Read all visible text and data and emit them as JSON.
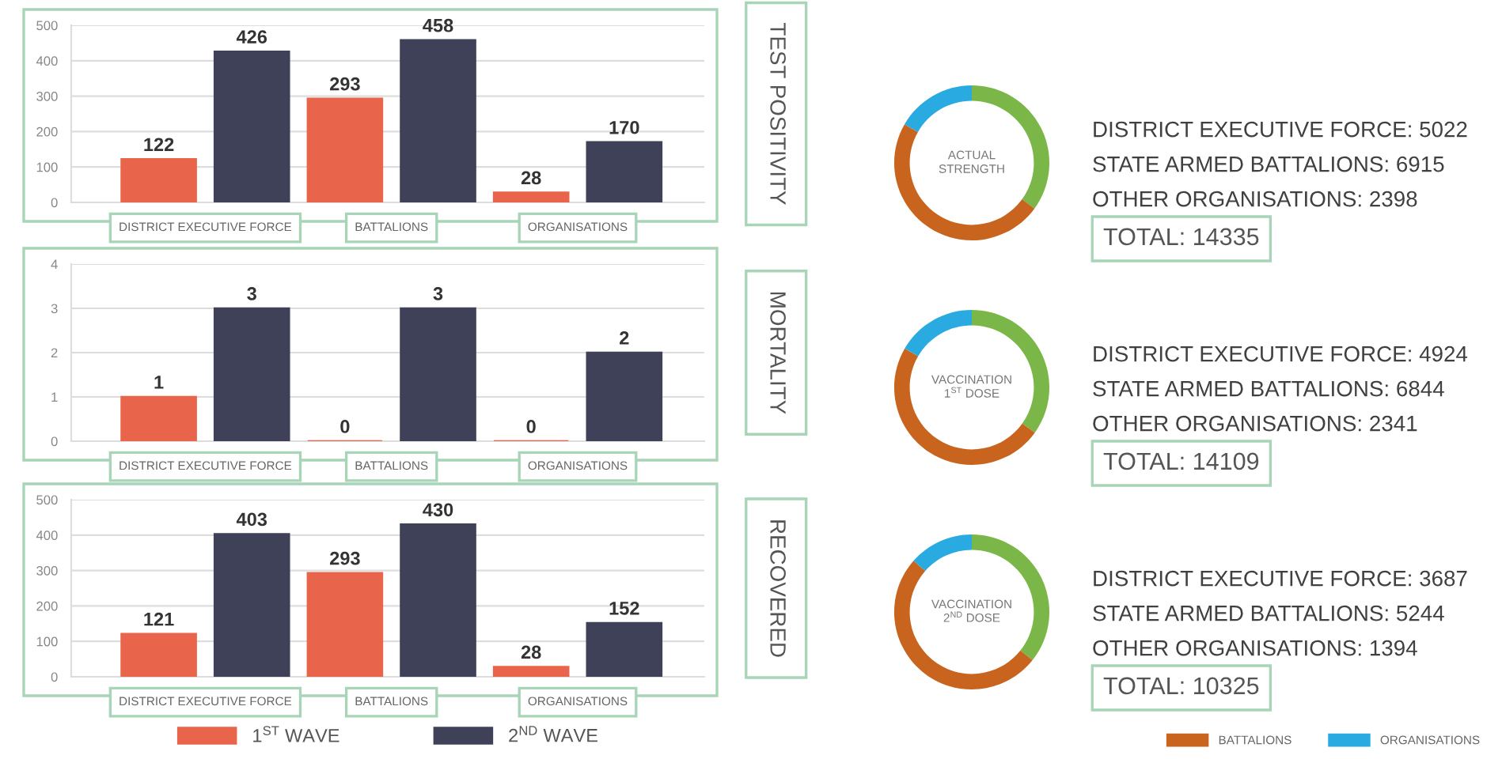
{
  "chart_data": [
    {
      "type": "bar",
      "ylabel": "TEST POSITIVITY",
      "categories": [
        "DISTRICT EXECUTIVE FORCE",
        "BATTALIONS",
        "ORGANISATIONS"
      ],
      "series": [
        {
          "color": "#e8654b",
          "values": [
            122,
            293,
            28
          ]
        },
        {
          "color": "#3f4159",
          "values": [
            426,
            458,
            170
          ]
        }
      ],
      "ylim": [
        0,
        500
      ],
      "yticks": [
        0,
        100,
        200,
        300,
        400,
        500
      ],
      "grid": "y",
      "data_labels": true
    },
    {
      "type": "bar",
      "ylabel": "MORTALITY",
      "categories": [
        "DISTRICT EXECUTIVE FORCE",
        "BATTALIONS",
        "ORGANISATIONS"
      ],
      "series": [
        {
          "color": "#e8654b",
          "values": [
            1,
            0,
            0
          ]
        },
        {
          "color": "#3f4159",
          "values": [
            3,
            3,
            2
          ]
        }
      ],
      "ylim": [
        0,
        4
      ],
      "yticks": [
        0,
        1,
        2,
        3,
        4
      ],
      "grid": "y",
      "data_labels": true
    },
    {
      "type": "bar",
      "ylabel": "RECOVERED",
      "categories": [
        "DISTRICT EXECUTIVE FORCE",
        "BATTALIONS",
        "ORGANISATIONS"
      ],
      "series": [
        {
          "name": "1$^{ST}$ WAVE",
          "color": "#e8654b",
          "values": [
            121,
            293,
            28
          ]
        },
        {
          "name": "2$^{ND}$ WAVE",
          "color": "#3f4159",
          "values": [
            403,
            430,
            152
          ]
        }
      ],
      "ylim": [
        0,
        500
      ],
      "yticks": [
        0,
        100,
        200,
        300,
        400,
        500
      ],
      "grid": "y",
      "data_labels": true,
      "legend": "bottom"
    },
    {
      "type": "donut",
      "title": "ACTUAL STRENGTH",
      "categories": [
        null,
        null,
        null
      ],
      "values": [
        35.0,
        48.3,
        16.7
      ],
      "colors": [
        "#7ab648",
        "#c8641e",
        "#29abe2"
      ],
      "annotations": [
        "DISTRICT EXECUTIVE FORCE: 5022",
        "STATE ARMED BATTALIONS: 6915",
        "OTHER ORGANISATIONS: 2398"
      ],
      "totals": [
        "TOTAL: 14335"
      ]
    },
    {
      "type": "donut",
      "title": "VACCINATION 1$^{ST}$ DOSE",
      "categories": [
        null,
        null,
        null
      ],
      "values": [
        34.9,
        48.5,
        16.6
      ],
      "colors": [
        "#7ab648",
        "#c8641e",
        "#29abe2"
      ],
      "annotations": [
        "DISTRICT EXECUTIVE FORCE: 4924",
        "STATE ARMED BATTALIONS: 6844",
        "OTHER ORGANISATIONS: 2341"
      ],
      "totals": [
        "TOTAL: 14109"
      ]
    },
    {
      "type": "donut",
      "title": "VACCINATION 2$^{ND}$ DOSE",
      "categories": [
        null,
        "BATTALIONS",
        "ORGANISATIONS"
      ],
      "values": [
        35.7,
        50.8,
        13.5
      ],
      "colors": [
        "#7ab648",
        "#c8641e",
        "#29abe2"
      ],
      "annotations": [
        "DISTRICT EXECUTIVE FORCE: 3687",
        "STATE ARMED BATTALIONS: 5244",
        "OTHER ORGANISATIONS: 1394"
      ],
      "totals": [
        "TOTAL: 10325"
      ],
      "legend": "bottom"
    }
  ]
}
